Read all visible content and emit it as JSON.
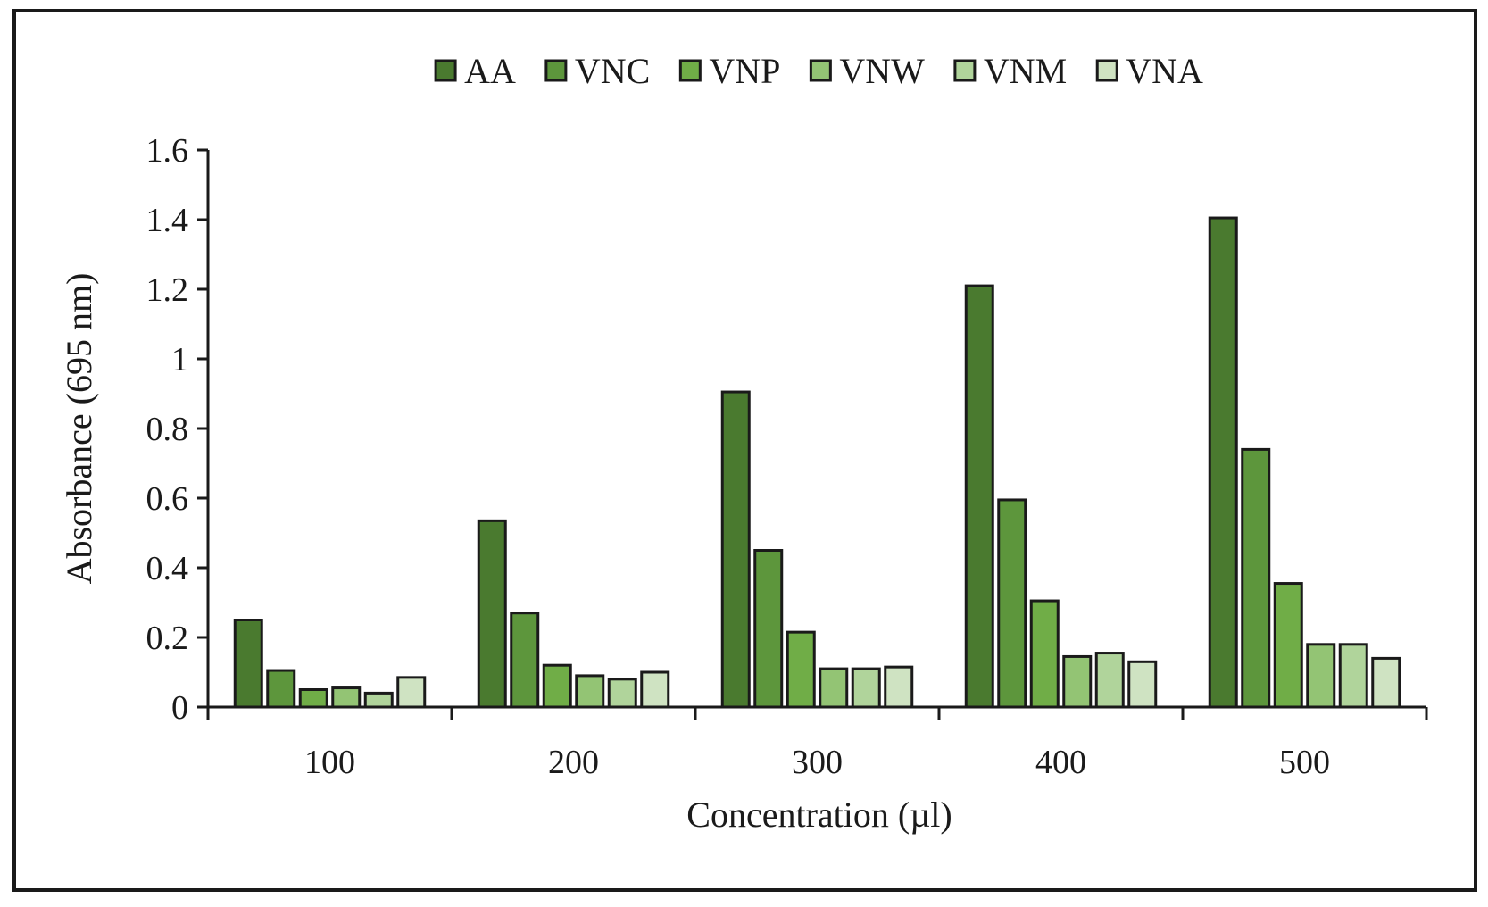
{
  "chart_data": {
    "type": "bar",
    "title": "",
    "xlabel": "Concentration (µl)",
    "ylabel": "Absorbance (695 nm)",
    "categories": [
      "100",
      "200",
      "300",
      "400",
      "500"
    ],
    "ylim": [
      0,
      1.6
    ],
    "yticks": [
      "0",
      "0.2",
      "0.4",
      "0.6",
      "0.8",
      "1",
      "1.2",
      "1.4",
      "1.6"
    ],
    "ytick_values": [
      0,
      0.2,
      0.4,
      0.6,
      0.8,
      1.0,
      1.2,
      1.4,
      1.6
    ],
    "grid": false,
    "legend_position": "top",
    "series": [
      {
        "name": "AA",
        "color": "#4a7a2f",
        "values": [
          0.25,
          0.535,
          0.905,
          1.21,
          1.405
        ]
      },
      {
        "name": "VNC",
        "color": "#5d963c",
        "values": [
          0.105,
          0.27,
          0.45,
          0.595,
          0.74
        ]
      },
      {
        "name": "VNP",
        "color": "#70ad47",
        "values": [
          0.05,
          0.12,
          0.215,
          0.305,
          0.355
        ]
      },
      {
        "name": "VNW",
        "color": "#93c474",
        "values": [
          0.055,
          0.09,
          0.11,
          0.145,
          0.18
        ]
      },
      {
        "name": "VNM",
        "color": "#b0d49b",
        "values": [
          0.04,
          0.08,
          0.11,
          0.155,
          0.18
        ]
      },
      {
        "name": "VNA",
        "color": "#cfe3c2",
        "values": [
          0.085,
          0.1,
          0.115,
          0.13,
          0.14
        ]
      }
    ]
  }
}
